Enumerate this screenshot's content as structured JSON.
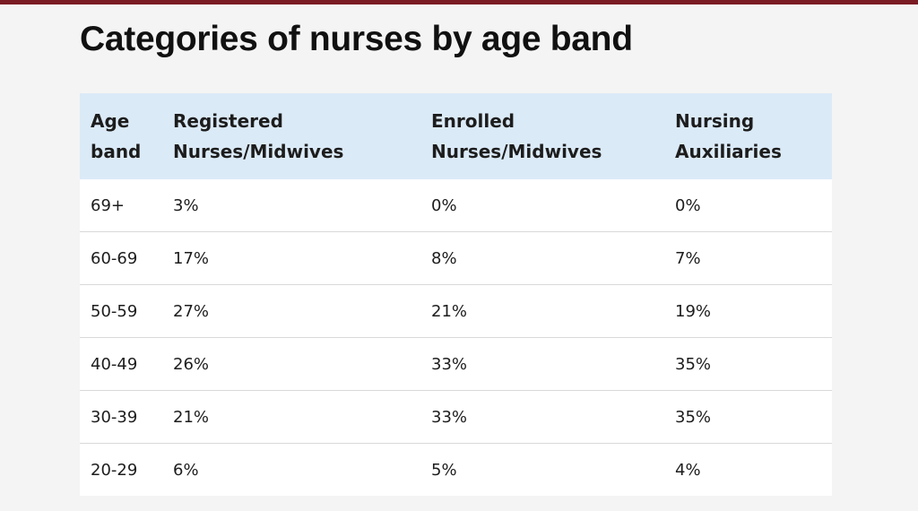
{
  "chart_data": {
    "type": "table",
    "title": "Categories of nurses by age band",
    "columns": [
      "Age band",
      "Registered Nurses/Midwives",
      "Enrolled Nurses/Midwives",
      "Nursing Auxiliaries"
    ],
    "header_lines": [
      [
        "Age",
        "band"
      ],
      [
        "Registered",
        "Nurses/Midwives"
      ],
      [
        "Enrolled",
        "Nurses/Midwives"
      ],
      [
        "Nursing",
        "Auxiliaries"
      ]
    ],
    "rows": [
      [
        "69+",
        "3%",
        "0%",
        "0%"
      ],
      [
        "60-69",
        "17%",
        "8%",
        "7%"
      ],
      [
        "50-59",
        "27%",
        "21%",
        "19%"
      ],
      [
        "40-49",
        "26%",
        "33%",
        "35%"
      ],
      [
        "30-39",
        "21%",
        "33%",
        "35%"
      ],
      [
        "20-29",
        "6%",
        "5%",
        "4%"
      ]
    ]
  },
  "colors": {
    "accent_bar": "#7a1a22",
    "header_bg": "#dbeaf7",
    "page_bg": "#f4f4f4"
  }
}
